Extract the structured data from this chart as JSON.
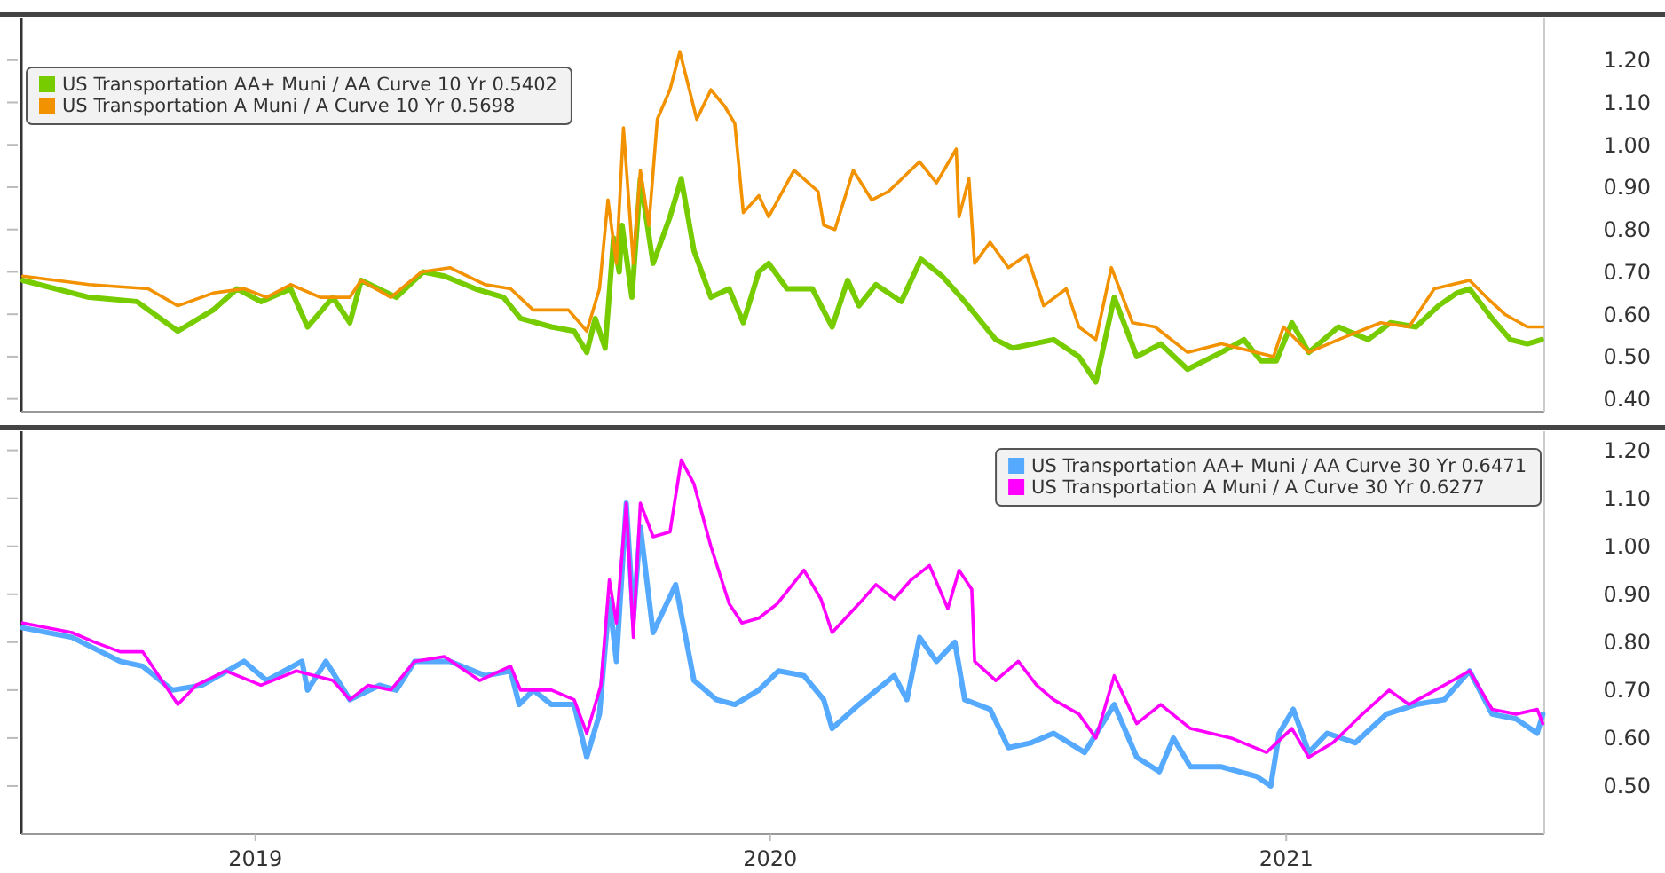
{
  "chart_data": [
    {
      "type": "line",
      "legend": "top left",
      "tick_labels": "y",
      "xlim": [
        "2019-01-17",
        "2022-01-01"
      ],
      "ylim": [
        0.37,
        1.3
      ],
      "yticks": [
        {
          "value": 0.4,
          "label": "0.40"
        },
        {
          "value": 0.5,
          "label": "0.50"
        },
        {
          "value": 0.6,
          "label": "0.60"
        },
        {
          "value": 0.7,
          "label": "0.70"
        },
        {
          "value": 0.8,
          "label": "0.80"
        },
        {
          "value": 0.9,
          "label": "0.90"
        },
        {
          "value": 1.0,
          "label": "1.00"
        },
        {
          "value": 1.1,
          "label": "1.10"
        },
        {
          "value": 1.2,
          "label": "1.20"
        }
      ],
      "series": [
        {
          "name": "US Transportation AA+ Muni / AA Curve 10 Yr  0.5402",
          "color": "#77cc00",
          "x": [
            "2019-01-18",
            "2019-03-06",
            "2019-04-09",
            "2019-05-08",
            "2019-06-02",
            "2019-06-19",
            "2019-07-06",
            "2019-07-27",
            "2019-08-08",
            "2019-08-26",
            "2019-09-07",
            "2019-09-15",
            "2019-10-10",
            "2019-10-29",
            "2019-11-13",
            "2019-12-05",
            "2019-12-25",
            "2020-01-06",
            "2020-01-28",
            "2020-02-13",
            "2020-02-22",
            "2020-02-28",
            "2020-03-06",
            "2020-03-12",
            "2020-03-16",
            "2020-03-18",
            "2020-03-25",
            "2020-03-31",
            "2020-04-09",
            "2020-04-21",
            "2020-04-29",
            "2020-05-08",
            "2020-05-20",
            "2020-06-02",
            "2020-06-12",
            "2020-06-23",
            "2020-06-30",
            "2020-07-13",
            "2020-07-31",
            "2020-08-14",
            "2020-08-25",
            "2020-09-02",
            "2020-09-14",
            "2020-10-02",
            "2020-10-16",
            "2020-10-31",
            "2020-11-16",
            "2020-12-08",
            "2020-12-20",
            "2021-01-18",
            "2021-02-05",
            "2021-02-17",
            "2021-03-02",
            "2021-03-18",
            "2021-04-04",
            "2021-04-23",
            "2021-05-17",
            "2021-06-02",
            "2021-06-14",
            "2021-06-25",
            "2021-07-06",
            "2021-07-18",
            "2021-08-08",
            "2021-08-29",
            "2021-09-14",
            "2021-10-02",
            "2021-10-18",
            "2021-10-31",
            "2021-11-09",
            "2021-11-25",
            "2021-12-08",
            "2021-12-20",
            "2021-12-30"
          ],
          "values": [
            0.68,
            0.64,
            0.63,
            0.56,
            0.61,
            0.66,
            0.63,
            0.66,
            0.57,
            0.64,
            0.58,
            0.68,
            0.64,
            0.7,
            0.69,
            0.66,
            0.64,
            0.59,
            0.57,
            0.56,
            0.51,
            0.59,
            0.52,
            0.78,
            0.7,
            0.81,
            0.64,
            0.92,
            0.72,
            0.83,
            0.92,
            0.75,
            0.64,
            0.66,
            0.58,
            0.7,
            0.72,
            0.66,
            0.66,
            0.57,
            0.68,
            0.62,
            0.67,
            0.63,
            0.73,
            0.69,
            0.63,
            0.54,
            0.52,
            0.54,
            0.5,
            0.44,
            0.64,
            0.5,
            0.53,
            0.47,
            0.51,
            0.54,
            0.49,
            0.49,
            0.58,
            0.51,
            0.57,
            0.54,
            0.58,
            0.57,
            0.62,
            0.65,
            0.66,
            0.59,
            0.54,
            0.53,
            0.54
          ]
        },
        {
          "name": "US Transportation A Muni / A Curve 10 Yr  0.5698",
          "color": "#f39200",
          "x": [
            "2019-01-18",
            "2019-03-06",
            "2019-04-17",
            "2019-05-08",
            "2019-06-02",
            "2019-06-24",
            "2019-07-10",
            "2019-07-27",
            "2019-08-17",
            "2019-09-07",
            "2019-09-15",
            "2019-10-06",
            "2019-10-28",
            "2019-11-17",
            "2019-12-12",
            "2019-12-30",
            "2020-01-15",
            "2020-02-09",
            "2020-02-22",
            "2020-03-02",
            "2020-03-08",
            "2020-03-14",
            "2020-03-19",
            "2020-03-26",
            "2020-03-31",
            "2020-04-06",
            "2020-04-12",
            "2020-04-21",
            "2020-04-28",
            "2020-05-10",
            "2020-05-20",
            "2020-05-30",
            "2020-06-06",
            "2020-06-12",
            "2020-06-23",
            "2020-06-30",
            "2020-07-18",
            "2020-08-04",
            "2020-08-08",
            "2020-08-16",
            "2020-08-29",
            "2020-09-11",
            "2020-09-23",
            "2020-10-15",
            "2020-10-27",
            "2020-11-10",
            "2020-11-12",
            "2020-11-19",
            "2020-11-23",
            "2020-12-04",
            "2020-12-17",
            "2020-12-30",
            "2021-01-11",
            "2021-01-27",
            "2021-02-05",
            "2021-02-17",
            "2021-02-28",
            "2021-03-15",
            "2021-03-31",
            "2021-04-23",
            "2021-05-17",
            "2021-06-11",
            "2021-06-23",
            "2021-06-30",
            "2021-07-18",
            "2021-08-08",
            "2021-09-07",
            "2021-09-27",
            "2021-10-15",
            "2021-11-09",
            "2021-11-21",
            "2021-12-04",
            "2021-12-20",
            "2021-12-31"
          ],
          "values": [
            0.69,
            0.67,
            0.66,
            0.62,
            0.65,
            0.66,
            0.64,
            0.67,
            0.64,
            0.64,
            0.68,
            0.64,
            0.7,
            0.71,
            0.67,
            0.66,
            0.61,
            0.61,
            0.56,
            0.66,
            0.87,
            0.72,
            1.04,
            0.72,
            0.94,
            0.81,
            1.06,
            1.13,
            1.22,
            1.06,
            1.13,
            1.09,
            1.05,
            0.84,
            0.88,
            0.83,
            0.94,
            0.89,
            0.81,
            0.8,
            0.94,
            0.87,
            0.89,
            0.96,
            0.91,
            0.99,
            0.83,
            0.92,
            0.72,
            0.77,
            0.71,
            0.74,
            0.62,
            0.66,
            0.57,
            0.54,
            0.71,
            0.58,
            0.57,
            0.51,
            0.53,
            0.51,
            0.5,
            0.57,
            0.51,
            0.54,
            0.58,
            0.57,
            0.66,
            0.68,
            0.64,
            0.6,
            0.57,
            0.57
          ]
        }
      ]
    },
    {
      "type": "line",
      "legend": "top right",
      "xlim": [
        "2019-01-17",
        "2022-01-01"
      ],
      "xticks": [
        {
          "value": "2019-07-02",
          "label": "2019"
        },
        {
          "value": "2020-07-01",
          "label": "2020"
        },
        {
          "value": "2021-07-02",
          "label": "2021"
        }
      ],
      "ylim": [
        0.4,
        1.24
      ],
      "yticks": [
        {
          "value": 0.5,
          "label": "0.50"
        },
        {
          "value": 0.6,
          "label": "0.60"
        },
        {
          "value": 0.7,
          "label": "0.70"
        },
        {
          "value": 0.8,
          "label": "0.80"
        },
        {
          "value": 0.9,
          "label": "0.90"
        },
        {
          "value": 1.0,
          "label": "1.00"
        },
        {
          "value": 1.1,
          "label": "1.10"
        },
        {
          "value": 1.2,
          "label": "1.20"
        }
      ],
      "series": [
        {
          "name": "US Transportation AA+ Muni / AA Curve 30 Yr  0.6471",
          "color": "#55aaff",
          "x": [
            "2019-01-18",
            "2019-02-22",
            "2019-03-28",
            "2019-04-13",
            "2019-05-04",
            "2019-05-25",
            "2019-06-24",
            "2019-07-10",
            "2019-08-04",
            "2019-08-08",
            "2019-08-21",
            "2019-09-07",
            "2019-09-28",
            "2019-10-10",
            "2019-10-23",
            "2019-11-17",
            "2019-12-12",
            "2019-12-30",
            "2020-01-05",
            "2020-01-15",
            "2020-01-28",
            "2020-02-13",
            "2020-02-22",
            "2020-03-02",
            "2020-03-09",
            "2020-03-14",
            "2020-03-21",
            "2020-03-26",
            "2020-03-31",
            "2020-04-09",
            "2020-04-25",
            "2020-05-08",
            "2020-05-24",
            "2020-06-06",
            "2020-06-23",
            "2020-07-07",
            "2020-07-25",
            "2020-08-08",
            "2020-08-14",
            "2020-09-02",
            "2020-09-27",
            "2020-10-06",
            "2020-10-15",
            "2020-10-27",
            "2020-11-09",
            "2020-11-16",
            "2020-12-04",
            "2020-12-17",
            "2021-01-02",
            "2021-01-18",
            "2021-02-09",
            "2021-03-02",
            "2021-03-18",
            "2021-04-03",
            "2021-04-13",
            "2021-04-25",
            "2021-05-17",
            "2021-06-11",
            "2021-06-21",
            "2021-06-27",
            "2021-07-07",
            "2021-07-18",
            "2021-07-31",
            "2021-08-20",
            "2021-09-11",
            "2021-10-02",
            "2021-10-22",
            "2021-11-09",
            "2021-11-25",
            "2021-12-12",
            "2021-12-27",
            "2021-12-31"
          ],
          "values": [
            0.83,
            0.81,
            0.76,
            0.75,
            0.7,
            0.71,
            0.76,
            0.72,
            0.76,
            0.7,
            0.76,
            0.68,
            0.71,
            0.7,
            0.76,
            0.76,
            0.73,
            0.74,
            0.67,
            0.7,
            0.67,
            0.67,
            0.56,
            0.65,
            0.89,
            0.76,
            1.09,
            0.85,
            1.04,
            0.82,
            0.92,
            0.72,
            0.68,
            0.67,
            0.7,
            0.74,
            0.73,
            0.68,
            0.62,
            0.67,
            0.73,
            0.68,
            0.81,
            0.76,
            0.8,
            0.68,
            0.66,
            0.58,
            0.59,
            0.61,
            0.57,
            0.67,
            0.56,
            0.53,
            0.6,
            0.54,
            0.54,
            0.52,
            0.5,
            0.61,
            0.66,
            0.57,
            0.61,
            0.59,
            0.65,
            0.67,
            0.68,
            0.74,
            0.65,
            0.64,
            0.61,
            0.65
          ]
        },
        {
          "name": "US Transportation A Muni / A Curve 30 Yr  0.6277",
          "color": "#ff00ff",
          "x": [
            "2019-01-18",
            "2019-02-22",
            "2019-03-10",
            "2019-03-28",
            "2019-04-13",
            "2019-05-08",
            "2019-05-21",
            "2019-06-11",
            "2019-07-06",
            "2019-07-31",
            "2019-08-26",
            "2019-09-07",
            "2019-09-20",
            "2019-10-06",
            "2019-10-23",
            "2019-11-13",
            "2019-12-08",
            "2019-12-30",
            "2020-01-06",
            "2020-01-28",
            "2020-02-13",
            "2020-02-22",
            "2020-03-03",
            "2020-03-09",
            "2020-03-14",
            "2020-03-21",
            "2020-03-26",
            "2020-03-31",
            "2020-04-09",
            "2020-04-21",
            "2020-04-29",
            "2020-05-08",
            "2020-05-20",
            "2020-06-02",
            "2020-06-11",
            "2020-06-23",
            "2020-07-06",
            "2020-07-25",
            "2020-08-06",
            "2020-08-14",
            "2020-09-02",
            "2020-09-14",
            "2020-09-27",
            "2020-10-09",
            "2020-10-22",
            "2020-11-04",
            "2020-11-12",
            "2020-11-21",
            "2020-11-23",
            "2020-12-08",
            "2020-12-24",
            "2021-01-06",
            "2021-01-18",
            "2021-02-05",
            "2021-02-17",
            "2021-03-02",
            "2021-03-18",
            "2021-04-04",
            "2021-04-25",
            "2021-05-24",
            "2021-06-18",
            "2021-07-06",
            "2021-07-18",
            "2021-08-04",
            "2021-08-25",
            "2021-09-13",
            "2021-09-27",
            "2021-10-22",
            "2021-11-09",
            "2021-11-25",
            "2021-12-12",
            "2021-12-27",
            "2021-12-31"
          ],
          "values": [
            0.84,
            0.82,
            0.8,
            0.78,
            0.78,
            0.67,
            0.71,
            0.74,
            0.71,
            0.74,
            0.72,
            0.68,
            0.71,
            0.7,
            0.76,
            0.77,
            0.72,
            0.75,
            0.7,
            0.7,
            0.68,
            0.61,
            0.71,
            0.93,
            0.84,
            1.09,
            0.81,
            1.09,
            1.02,
            1.03,
            1.18,
            1.13,
            1.0,
            0.88,
            0.84,
            0.85,
            0.88,
            0.95,
            0.89,
            0.82,
            0.88,
            0.92,
            0.89,
            0.93,
            0.96,
            0.87,
            0.95,
            0.91,
            0.76,
            0.72,
            0.76,
            0.71,
            0.68,
            0.65,
            0.6,
            0.73,
            0.63,
            0.67,
            0.62,
            0.6,
            0.57,
            0.62,
            0.56,
            0.59,
            0.65,
            0.7,
            0.67,
            0.71,
            0.74,
            0.66,
            0.65,
            0.66,
            0.63
          ]
        }
      ]
    }
  ]
}
